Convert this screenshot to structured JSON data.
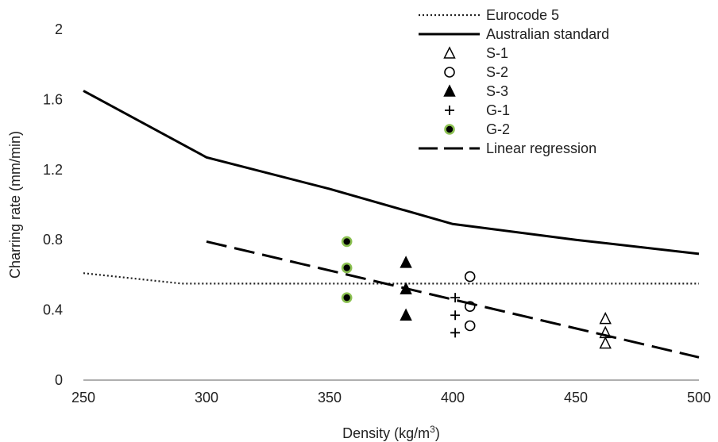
{
  "chart_data": {
    "type": "scatter",
    "xlabel": "Density (kg/m",
    "xlabel_sup": "3",
    "xlabel_suffix": ")",
    "ylabel": "Charring rate (mm/min)",
    "xlim": [
      250,
      500
    ],
    "ylim": [
      0,
      2
    ],
    "xticks": [
      250,
      300,
      350,
      400,
      450,
      500
    ],
    "yticks": [
      0,
      0.4,
      0.8,
      1.2,
      1.6,
      2
    ],
    "ytick_labels": [
      "0",
      "0.4",
      "0.8",
      "1.2",
      "1.6",
      "2"
    ],
    "grid": false,
    "legend_position": "top-right",
    "series": [
      {
        "name": "Eurocode 5",
        "kind": "line",
        "style": "dotted",
        "color": "#222222",
        "points": [
          [
            250,
            0.61
          ],
          [
            290,
            0.55
          ],
          [
            500,
            0.55
          ]
        ]
      },
      {
        "name": "Australian standard",
        "kind": "line",
        "style": "solid",
        "color": "#000000",
        "points": [
          [
            250,
            1.65
          ],
          [
            300,
            1.27
          ],
          [
            350,
            1.09
          ],
          [
            400,
            0.89
          ],
          [
            450,
            0.8
          ],
          [
            500,
            0.72
          ]
        ]
      },
      {
        "name": "S-1",
        "kind": "points",
        "marker": "triangle-open",
        "color": "#000000",
        "points": [
          [
            462,
            0.35
          ],
          [
            462,
            0.27
          ],
          [
            462,
            0.21
          ]
        ]
      },
      {
        "name": "S-2",
        "kind": "points",
        "marker": "circle-open",
        "color": "#000000",
        "points": [
          [
            407,
            0.59
          ],
          [
            407,
            0.42
          ],
          [
            407,
            0.31
          ]
        ]
      },
      {
        "name": "S-3",
        "kind": "points",
        "marker": "triangle-filled",
        "color": "#000000",
        "points": [
          [
            381,
            0.67
          ],
          [
            381,
            0.52
          ],
          [
            381,
            0.37
          ]
        ]
      },
      {
        "name": "G-1",
        "kind": "points",
        "marker": "plus",
        "color": "#000000",
        "points": [
          [
            401,
            0.47
          ],
          [
            401,
            0.37
          ],
          [
            401,
            0.27
          ]
        ]
      },
      {
        "name": "G-2",
        "kind": "points",
        "marker": "circle-green-ring",
        "color": "#000000",
        "ring_color": "#8cc152",
        "points": [
          [
            357,
            0.79
          ],
          [
            357,
            0.64
          ],
          [
            357,
            0.47
          ]
        ]
      },
      {
        "name": "Linear regression",
        "kind": "line",
        "style": "dashed",
        "color": "#000000",
        "points": [
          [
            300,
            0.79
          ],
          [
            500,
            0.13
          ]
        ]
      }
    ]
  }
}
